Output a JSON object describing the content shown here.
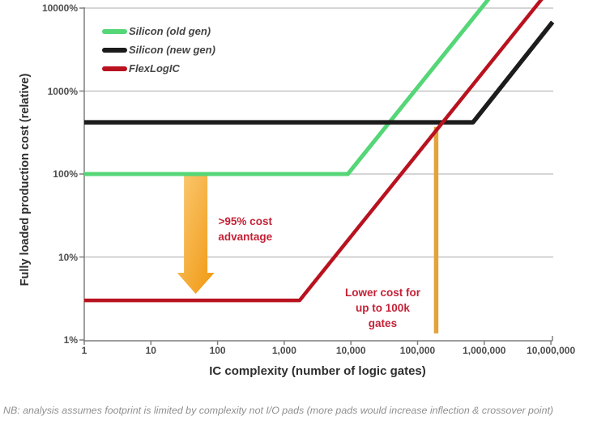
{
  "chart": {
    "y_axis_title": "Fully loaded production cost (relative)",
    "x_axis_title": "IC complexity (number of logic gates)",
    "footnote": "NB: analysis assumes footprint is limited by complexity not I/O pads (more pads would increase inflection & crossover point)"
  },
  "chart_data": {
    "type": "line",
    "title": "",
    "xlabel": "IC complexity (number of logic gates)",
    "ylabel": "Fully loaded production cost (relative)",
    "x_scale": "log",
    "y_scale": "log",
    "x_range_gates": [
      1,
      10000000
    ],
    "y_range_percent": [
      1,
      10000
    ],
    "grid": "horizontal gridlines only",
    "legend_position": "inside top-left",
    "x_ticks": [
      {
        "value": 1,
        "label": "1"
      },
      {
        "value": 10,
        "label": "10"
      },
      {
        "value": 100,
        "label": "100"
      },
      {
        "value": 1000,
        "label": "1,000"
      },
      {
        "value": 10000,
        "label": "10,000"
      },
      {
        "value": 100000,
        "label": "100,000"
      },
      {
        "value": 1000000,
        "label": "1,000,000"
      },
      {
        "value": 10000000,
        "label": "10,000,000"
      }
    ],
    "y_ticks": [
      {
        "value": 1,
        "label": "1%"
      },
      {
        "value": 10,
        "label": "10%"
      },
      {
        "value": 100,
        "label": "100%"
      },
      {
        "value": 1000,
        "label": "1000%"
      },
      {
        "value": 10000,
        "label": "10000%"
      }
    ],
    "series": [
      {
        "name": "Silicon (old gen)",
        "color": "#55d677",
        "stroke_width": 5,
        "points_gates_percent": [
          [
            1,
            100
          ],
          [
            9000,
            100
          ],
          [
            1300000,
            14400
          ]
        ],
        "description": "flat at 100% up to ~9,000 gates, then rises ~proportionally with gate count (exits top of plot ~1M gates)"
      },
      {
        "name": "Silicon (new gen)",
        "color": "#1c1c1c",
        "stroke_width": 5.5,
        "points_gates_percent": [
          [
            1,
            420
          ],
          [
            680000,
            420
          ],
          [
            10600000,
            6800
          ]
        ],
        "description": "flat at ~420% up to ~680,000 gates, then rises to ~6,800% at 10M gates"
      },
      {
        "name": "FlexLogIC",
        "color": "#b9121f",
        "stroke_width": 4.5,
        "points_gates_percent": [
          [
            1,
            3
          ],
          [
            1700,
            3
          ],
          [
            7500000,
            13200
          ]
        ],
        "description": "flat at ~3% up to ~1,700 gates, then rises; crosses Silicon (new gen) at ~200k gates"
      }
    ],
    "annotations": {
      "cost_advantage_arrow": {
        "shape": "wide downward arrow",
        "x_gates": 47,
        "from_percent": 95,
        "to_percent": 3.6,
        "gradient_from": "#fbca74",
        "gradient_to": "#f0970f"
      },
      "cost_advantage_label": {
        "lines": [
          ">95% cost",
          "advantage"
        ],
        "text": ">95% cost advantage",
        "x_gates": 260,
        "top_percent": 33,
        "color": "#c42136"
      },
      "lower_cost_label": {
        "lines": [
          "Lower cost for",
          "up to 100k",
          "gates"
        ],
        "text": "Lower cost for up to 100k gates",
        "x_gates": 30000,
        "top_percent": 4.6,
        "color": "#c42136"
      },
      "crossover_line": {
        "shape": "vertical line",
        "x_gates": 190000,
        "from_percent": 370,
        "to_percent": 1.2,
        "color": "#e2a33c",
        "stroke_width": 5.5
      }
    },
    "style": {
      "gridline_color": "#ababab",
      "axis_color": "#7f7f7f",
      "tick_label_color": "#4d4d4d"
    }
  }
}
